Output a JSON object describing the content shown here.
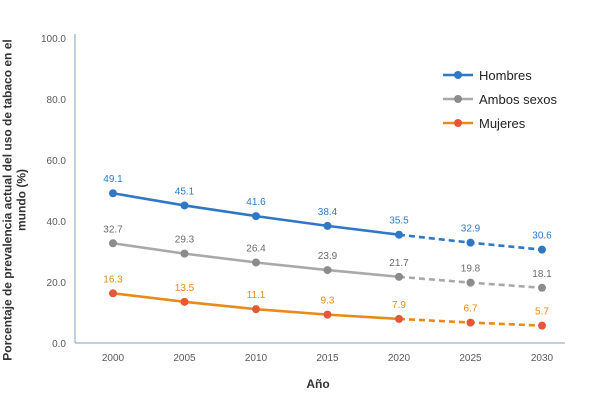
{
  "chart_data": {
    "type": "line",
    "x": [
      "2000",
      "2005",
      "2010",
      "2015",
      "2020",
      "2025",
      "2030"
    ],
    "projection_start_index": 4,
    "series": [
      {
        "name": "Hombres",
        "color": "#2f78c4",
        "values": [
          49.1,
          45.1,
          41.6,
          38.4,
          35.5,
          32.9,
          30.6
        ],
        "labels": [
          "49.1",
          "45.1",
          "41.6",
          "38.4",
          "35.5",
          "32.9",
          "30.6"
        ]
      },
      {
        "name": "Ambos sexos",
        "color": "#a9a9a9",
        "marker_color": "#8c8c8c",
        "label_color": "#6b6b6b",
        "values": [
          32.7,
          29.3,
          26.4,
          23.9,
          21.7,
          19.8,
          18.1
        ],
        "labels": [
          "32.7",
          "29.3",
          "26.4",
          "23.9",
          "21.7",
          "19.8",
          "18.1"
        ]
      },
      {
        "name": "Mujeres",
        "color": "#ea8a1a",
        "marker_color": "#e8563a",
        "values": [
          16.3,
          13.5,
          11.1,
          9.3,
          7.9,
          6.7,
          5.7
        ],
        "labels": [
          "16.3",
          "13.5",
          "11.1",
          "9.3",
          "7.9",
          "6.7",
          "5.7"
        ]
      }
    ],
    "yticks": [
      "0.0",
      "20.0",
      "40.0",
      "60.0",
      "80.0",
      "100.0"
    ],
    "ylim": [
      0,
      100
    ],
    "xlabel": "Año",
    "ylabel": "Porcentaje de prevalencia actual del uso de tabaco en el mundo (%)",
    "legend_position": "top-right",
    "grid": false
  }
}
